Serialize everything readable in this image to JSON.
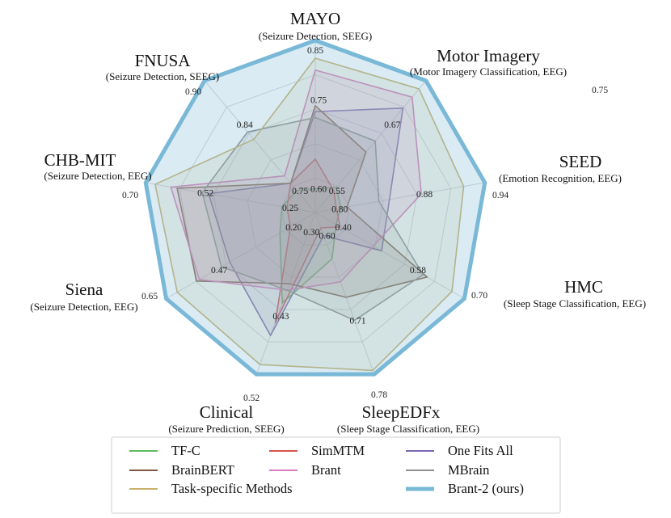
{
  "chart_data": {
    "type": "radar",
    "axes": [
      {
        "name": "MAYO",
        "task": "(Seizure Detection, SEEG)",
        "ticks": [
          "0.60",
          "0.75",
          "0.85"
        ],
        "outer": "0.85",
        "labels": [
          "0.60",
          "0.75"
        ]
      },
      {
        "name": "Motor Imagery",
        "task": "(Motor Imagery Classification, EEG)",
        "ticks": [
          "0.55",
          "0.67",
          "0.75"
        ],
        "outer": "0.75",
        "labels": [
          "0.55",
          "0.67"
        ]
      },
      {
        "name": "SEED",
        "task": "(Emotion Recognition, EEG)",
        "ticks": [
          "0.80",
          "0.88",
          "0.94"
        ],
        "outer": "0.94",
        "labels": [
          "0.80",
          "0.88"
        ]
      },
      {
        "name": "HMC",
        "task": "(Sleep Stage Classification, EEG)",
        "ticks": [
          "0.40",
          "0.58",
          "0.70"
        ],
        "outer": "0.70",
        "labels": [
          "0.40",
          "0.58"
        ]
      },
      {
        "name": "SleepEDFx",
        "task": "(Sleep Stage Classification, EEG)",
        "ticks": [
          "0.60",
          "0.71",
          "0.78"
        ],
        "outer": "0.78",
        "labels": [
          "0.60",
          "0.71"
        ]
      },
      {
        "name": "Clinical",
        "task": "(Seizure Prediction, SEEG)",
        "ticks": [
          "0.30",
          "0.43",
          "0.52"
        ],
        "outer": "0.52",
        "labels": [
          "0.30",
          "0.43"
        ]
      },
      {
        "name": "Siena",
        "task": "(Seizure Detection, EEG)",
        "ticks": [
          "0.20",
          "0.47",
          "0.65"
        ],
        "outer": "0.65",
        "labels": [
          "0.20",
          "0.47"
        ]
      },
      {
        "name": "CHB-MIT",
        "task": "(Seizure Detection, EEG)",
        "ticks": [
          "0.25",
          "0.52",
          "0.70"
        ],
        "outer": "0.70",
        "labels": [
          "0.25",
          "0.52"
        ]
      },
      {
        "name": "FNUSA",
        "task": "(Seizure Detection, SEEG)",
        "ticks": [
          "0.75",
          "0.84",
          "0.90"
        ],
        "outer": "0.90",
        "labels": [
          "0.75",
          "0.84"
        ]
      }
    ],
    "axis_min": [
      0.56,
      0.51,
      0.78,
      0.34,
      0.57,
      0.27,
      0.11,
      0.16,
      0.72
    ],
    "axis_max": [
      0.85,
      0.75,
      0.94,
      0.7,
      0.78,
      0.52,
      0.65,
      0.7,
      0.9
    ],
    "grid_levels": 5,
    "series": [
      {
        "name": "TF-C",
        "color": "#5dbb63",
        "values": [
          0.6,
          0.556,
          0.804,
          0.39,
          0.63,
          0.41,
          0.238,
          0.266,
          0.75
        ]
      },
      {
        "name": "SimMTM",
        "color": "#d9534f",
        "values": [
          0.65,
          0.55,
          0.8,
          0.4,
          0.59,
          0.44,
          0.2,
          0.25,
          0.76
        ]
      },
      {
        "name": "One Fits All",
        "color": "#7b68b0",
        "values": [
          0.73,
          0.7,
          0.85,
          0.5,
          0.6,
          0.46,
          0.42,
          0.5,
          0.76
        ]
      },
      {
        "name": "BrainBERT",
        "color": "#7b5a45",
        "values": [
          0.74,
          0.62,
          0.81,
          0.61,
          0.68,
          0.38,
          0.54,
          0.6,
          0.76
        ]
      },
      {
        "name": "Brant",
        "color": "#d97bc0",
        "values": [
          0.8,
          0.72,
          0.88,
          0.48,
          0.66,
          0.39,
          0.53,
          0.62,
          0.77
        ]
      },
      {
        "name": "MBrain",
        "color": "#8f8f8f",
        "values": [
          0.72,
          0.64,
          0.84,
          0.6,
          0.71,
          0.39,
          0.45,
          0.52,
          0.83
        ]
      },
      {
        "name": "Task-specific Methods",
        "color": "#c9b26e",
        "values": [
          0.82,
          0.735,
          0.92,
          0.67,
          0.775,
          0.505,
          0.61,
          0.67,
          0.82
        ]
      },
      {
        "name": "Brant-2 (ours)",
        "color": "#79b8d6",
        "values": [
          0.85,
          0.75,
          0.94,
          0.7,
          0.78,
          0.52,
          0.65,
          0.7,
          0.9
        ]
      }
    ],
    "legend_position": "bottom",
    "grid": true
  },
  "legend": {
    "items": [
      {
        "label": "TF-C",
        "color": "#5dbb63"
      },
      {
        "label": "SimMTM",
        "color": "#d9534f"
      },
      {
        "label": "One Fits All",
        "color": "#7b68b0"
      },
      {
        "label": "BrainBERT",
        "color": "#7b5a45"
      },
      {
        "label": "Brant",
        "color": "#d97bc0"
      },
      {
        "label": "MBrain",
        "color": "#8f8f8f"
      },
      {
        "label": "Task-specific Methods",
        "color": "#c9b26e"
      },
      {
        "label": "",
        "color": ""
      },
      {
        "label": "Brant-2 (ours)",
        "color": "#79b8d6"
      }
    ]
  }
}
